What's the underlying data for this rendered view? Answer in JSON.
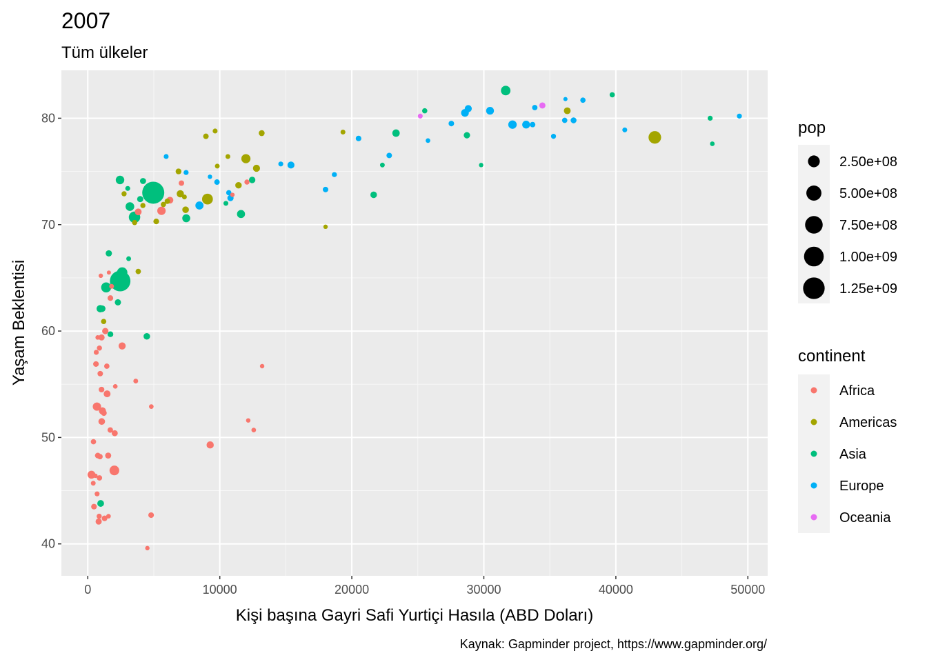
{
  "chart_data": {
    "type": "scatter",
    "title": "2007",
    "subtitle": "Tüm ülkeler",
    "xlabel": "Kişi başına Gayri Safi Yurtiçi Hasıla (ABD Doları)",
    "ylabel": "Yaşam Beklentisi",
    "caption": "Kaynak: Gapminder project, https://www.gapminder.org/",
    "xlim": [
      -2000,
      51500
    ],
    "ylim": [
      37,
      84.5
    ],
    "x_ticks": [
      0,
      10000,
      20000,
      30000,
      40000,
      50000
    ],
    "x_tick_labels": [
      "0",
      "10000",
      "20000",
      "30000",
      "40000",
      "50000"
    ],
    "y_ticks": [
      40,
      50,
      60,
      70,
      80
    ],
    "y_tick_labels": [
      "40",
      "50",
      "60",
      "70",
      "80"
    ],
    "grid": true,
    "legend_placement": "right",
    "size_legend": {
      "title": "pop",
      "values": [
        250000000,
        500000000,
        750000000,
        1000000000,
        1250000000
      ],
      "labels": [
        "2.50e+08",
        "5.00e+08",
        "7.50e+08",
        "1.00e+09",
        "1.25e+09"
      ]
    },
    "color_legend": {
      "title": "continent",
      "items": [
        {
          "name": "Africa",
          "color": "#F8766D"
        },
        {
          "name": "Americas",
          "color": "#A3A500"
        },
        {
          "name": "Asia",
          "color": "#00BF7D"
        },
        {
          "name": "Europe",
          "color": "#00B0F6"
        },
        {
          "name": "Oceania",
          "color": "#E76BF3"
        }
      ]
    },
    "series": [
      {
        "name": "Africa",
        "color": "#F8766D",
        "points": [
          [
            6223,
            72.3,
            33
          ],
          [
            4797,
            42.7,
            12
          ],
          [
            1441,
            56.7,
            8
          ],
          [
            12570,
            50.7,
            2
          ],
          [
            1217,
            52.3,
            14
          ],
          [
            430,
            49.6,
            8
          ],
          [
            2042,
            50.4,
            18
          ],
          [
            706,
            44.7,
            4
          ],
          [
            1704,
            50.7,
            10
          ],
          [
            986,
            65.2,
            1
          ],
          [
            278,
            46.5,
            64
          ],
          [
            3633,
            55.3,
            3
          ],
          [
            1545,
            48.3,
            18
          ],
          [
            2082,
            54.8,
            2
          ],
          [
            5581,
            71.3,
            80
          ],
          [
            12154,
            51.6,
            1
          ],
          [
            641,
            58.0,
            5
          ],
          [
            691,
            52.9,
            77
          ],
          [
            13206,
            56.7,
            1
          ],
          [
            753,
            59.4,
            2
          ],
          [
            1327,
            60.0,
            23
          ],
          [
            943,
            56.0,
            10
          ],
          [
            580,
            46.4,
            1
          ],
          [
            1463,
            54.1,
            35
          ],
          [
            1569,
            42.6,
            2
          ],
          [
            414,
            45.7,
            3
          ],
          [
            12057,
            74.0,
            6
          ],
          [
            1045,
            59.4,
            19
          ],
          [
            759,
            48.3,
            13
          ],
          [
            1042,
            54.5,
            12
          ],
          [
            1803,
            64.2,
            3
          ],
          [
            10957,
            72.8,
            1
          ],
          [
            3820,
            71.2,
            33
          ],
          [
            824,
            42.1,
            20
          ],
          [
            4811,
            52.9,
            2
          ],
          [
            620,
            56.9,
            12
          ],
          [
            2014,
            46.9,
            135
          ],
          [
            883,
            46.2,
            9
          ],
          [
            1598,
            65.5,
            0.2
          ],
          [
            1712,
            63.1,
            12
          ],
          [
            863,
            42.6,
            6
          ],
          [
            926,
            48.2,
            9
          ],
          [
            9270,
            49.3,
            44
          ],
          [
            2602,
            58.6,
            42
          ],
          [
            4513,
            39.6,
            1
          ],
          [
            1107,
            52.5,
            40
          ],
          [
            882,
            58.4,
            6
          ],
          [
            7093,
            73.9,
            10
          ],
          [
            1056,
            51.5,
            30
          ],
          [
            1271,
            42.4,
            12
          ],
          [
            470,
            43.5,
            12
          ]
        ]
      },
      {
        "name": "Americas",
        "color": "#A3A500",
        "points": [
          [
            12779,
            75.3,
            40
          ],
          [
            3822,
            65.6,
            9
          ],
          [
            9066,
            72.4,
            190
          ],
          [
            36319,
            80.7,
            33
          ],
          [
            13172,
            78.6,
            16
          ],
          [
            7007,
            72.9,
            44
          ],
          [
            9645,
            78.8,
            4
          ],
          [
            8948,
            78.3,
            11
          ],
          [
            6025,
            72.2,
            9
          ],
          [
            6873,
            75.0,
            14
          ],
          [
            5728,
            71.9,
            7
          ],
          [
            5186,
            70.3,
            13
          ],
          [
            1202,
            60.9,
            8
          ],
          [
            3548,
            70.2,
            7
          ],
          [
            7321,
            72.6,
            3
          ],
          [
            11978,
            76.2,
            109
          ],
          [
            2749,
            72.9,
            6
          ],
          [
            9809,
            75.5,
            3
          ],
          [
            4173,
            71.8,
            6
          ],
          [
            7409,
            71.4,
            29
          ],
          [
            19329,
            78.7,
            4
          ],
          [
            18009,
            69.8,
            1
          ],
          [
            42952,
            78.2,
            301
          ],
          [
            10611,
            76.4,
            3
          ],
          [
            11416,
            73.7,
            26
          ]
        ]
      },
      {
        "name": "Asia",
        "color": "#00BF7D",
        "points": [
          [
            975,
            43.8,
            32
          ],
          [
            29796,
            75.6,
            1
          ],
          [
            1391,
            64.1,
            150
          ],
          [
            1714,
            59.7,
            14
          ],
          [
            4959,
            73.0,
            1319
          ],
          [
            39725,
            82.2,
            7
          ],
          [
            2452,
            64.7,
            1110
          ],
          [
            3541,
            70.7,
            224
          ],
          [
            11606,
            71.0,
            69
          ],
          [
            4471,
            59.5,
            28
          ],
          [
            25523,
            80.7,
            7
          ],
          [
            31656,
            82.6,
            127
          ],
          [
            4519,
            72.5,
            6
          ],
          [
            1593,
            67.3,
            23
          ],
          [
            23348,
            78.6,
            49
          ],
          [
            47307,
            77.6,
            2
          ],
          [
            10461,
            72.0,
            4
          ],
          [
            12452,
            74.2,
            25
          ],
          [
            3096,
            66.8,
            3
          ],
          [
            944,
            62.1,
            47
          ],
          [
            1091,
            62.1,
            29
          ],
          [
            22316,
            75.6,
            3
          ],
          [
            2606,
            65.5,
            169
          ],
          [
            3190,
            71.7,
            91
          ],
          [
            21655,
            72.8,
            28
          ],
          [
            47143,
            80.0,
            5
          ],
          [
            3970,
            72.4,
            20
          ],
          [
            4185,
            74.1,
            19
          ],
          [
            28718,
            78.4,
            23
          ],
          [
            7458,
            70.6,
            65
          ],
          [
            2442,
            74.2,
            85
          ],
          [
            3025,
            73.4,
            4
          ],
          [
            2281,
            62.7,
            22
          ]
        ]
      },
      {
        "name": "Europe",
        "color": "#00B0F6",
        "points": [
          [
            5937,
            76.4,
            4
          ],
          [
            36126,
            79.8,
            8
          ],
          [
            33693,
            79.4,
            10
          ],
          [
            7446,
            74.9,
            5
          ],
          [
            10681,
            73.0,
            7
          ],
          [
            14619,
            75.7,
            4
          ],
          [
            22833,
            76.5,
            10
          ],
          [
            35278,
            78.3,
            5
          ],
          [
            33207,
            79.3,
            5
          ],
          [
            30470,
            80.7,
            61
          ],
          [
            32170,
            79.4,
            82
          ],
          [
            27538,
            79.5,
            11
          ],
          [
            18009,
            73.3,
            10
          ],
          [
            36181,
            81.8,
            0.3
          ],
          [
            40676,
            78.9,
            4
          ],
          [
            28570,
            80.5,
            58
          ],
          [
            9254,
            74.5,
            1
          ],
          [
            36798,
            79.8,
            16
          ],
          [
            49357,
            80.2,
            5
          ],
          [
            15390,
            75.6,
            38
          ],
          [
            20510,
            78.1,
            11
          ],
          [
            10808,
            72.5,
            22
          ],
          [
            9787,
            74.0,
            10
          ],
          [
            18678,
            74.7,
            5
          ],
          [
            25768,
            77.9,
            2
          ],
          [
            28821,
            80.9,
            40
          ],
          [
            33860,
            81.0,
            9
          ],
          [
            37506,
            81.7,
            8
          ],
          [
            8458,
            71.8,
            71
          ],
          [
            33203,
            79.4,
            61
          ]
        ]
      },
      {
        "name": "Oceania",
        "color": "#E76BF3",
        "points": [
          [
            34435,
            81.2,
            20
          ],
          [
            25185,
            80.2,
            4
          ]
        ]
      }
    ]
  }
}
